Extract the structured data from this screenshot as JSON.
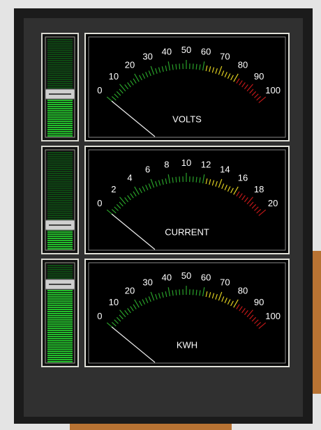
{
  "gauges": [
    {
      "label": "VOLTS",
      "scale": [
        0,
        10,
        20,
        30,
        40,
        50,
        60,
        70,
        80,
        90,
        100
      ]
    },
    {
      "label": "CURRENT",
      "scale": [
        0,
        2,
        4,
        6,
        8,
        10,
        12,
        14,
        16,
        18,
        20
      ]
    },
    {
      "label": "KWH",
      "scale": [
        0,
        10,
        20,
        30,
        40,
        50,
        60,
        70,
        80,
        90,
        100
      ]
    }
  ]
}
